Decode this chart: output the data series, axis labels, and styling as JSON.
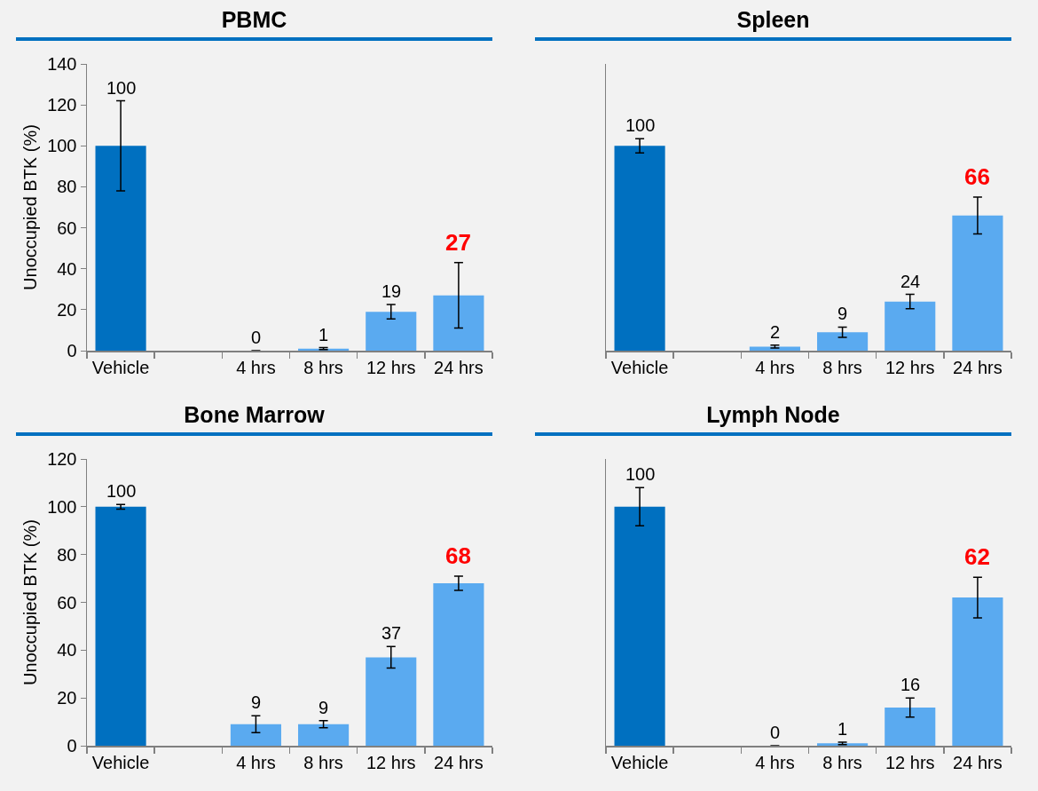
{
  "chart_data": [
    {
      "type": "bar",
      "title": "PBMC",
      "ylabel": "Unoccupied BTK (%)",
      "categories": [
        "Vehicle",
        null,
        "4 hrs",
        "8 hrs",
        "12 hrs",
        "24 hrs"
      ],
      "values": [
        100,
        null,
        0,
        1,
        19,
        27
      ],
      "colors": [
        "#0070c0",
        null,
        "#5aaaf0",
        "#5aaaf0",
        "#5aaaf0",
        "#5aaaf0"
      ],
      "errors": [
        22,
        null,
        null,
        0.5,
        3.5,
        16
      ],
      "ylim": [
        0,
        140
      ],
      "yticks": [
        0,
        20,
        40,
        60,
        80,
        100,
        120,
        140
      ],
      "data_labels": true
    },
    {
      "type": "bar",
      "title": "Spleen",
      "categories": [
        "Vehicle",
        null,
        "4 hrs",
        "8 hrs",
        "12 hrs",
        "24 hrs"
      ],
      "values": [
        100,
        null,
        2,
        9,
        24,
        66
      ],
      "colors": [
        "#0070c0",
        null,
        "#5aaaf0",
        "#5aaaf0",
        "#5aaaf0",
        "#5aaaf0"
      ],
      "errors": [
        3.5,
        null,
        0.7,
        2.5,
        3.5,
        9
      ],
      "ylim": [
        0,
        140
      ],
      "yticks": [
        0,
        20,
        40,
        60,
        80,
        100,
        120,
        140
      ],
      "data_labels": true,
      "tick_labels": "x"
    },
    {
      "type": "bar",
      "title": "Bone Marrow",
      "ylabel": "Unoccupied BTK (%)",
      "categories": [
        "Vehicle",
        null,
        "4 hrs",
        "8 hrs",
        "12 hrs",
        "24 hrs"
      ],
      "values": [
        100,
        null,
        9,
        9,
        37,
        68
      ],
      "colors": [
        "#0070c0",
        null,
        "#5aaaf0",
        "#5aaaf0",
        "#5aaaf0",
        "#5aaaf0"
      ],
      "errors": [
        1,
        null,
        3.5,
        1.5,
        4.5,
        3
      ],
      "ylim": [
        0,
        120
      ],
      "yticks": [
        0,
        20,
        40,
        60,
        80,
        100,
        120
      ],
      "data_labels": true
    },
    {
      "type": "bar",
      "title": "Lymph Node",
      "categories": [
        "Vehicle",
        null,
        "4 hrs",
        "8 hrs",
        "12 hrs",
        "24 hrs"
      ],
      "values": [
        100,
        null,
        0,
        1,
        16,
        62
      ],
      "colors": [
        "#0070c0",
        null,
        "#5aaaf0",
        "#5aaaf0",
        "#5aaaf0",
        "#5aaaf0"
      ],
      "errors": [
        8,
        null,
        null,
        0.5,
        4,
        8.5
      ],
      "ylim": [
        0,
        120
      ],
      "yticks": [
        0,
        20,
        40,
        60,
        80,
        100,
        120
      ],
      "data_labels": true,
      "tick_labels": "x"
    }
  ]
}
